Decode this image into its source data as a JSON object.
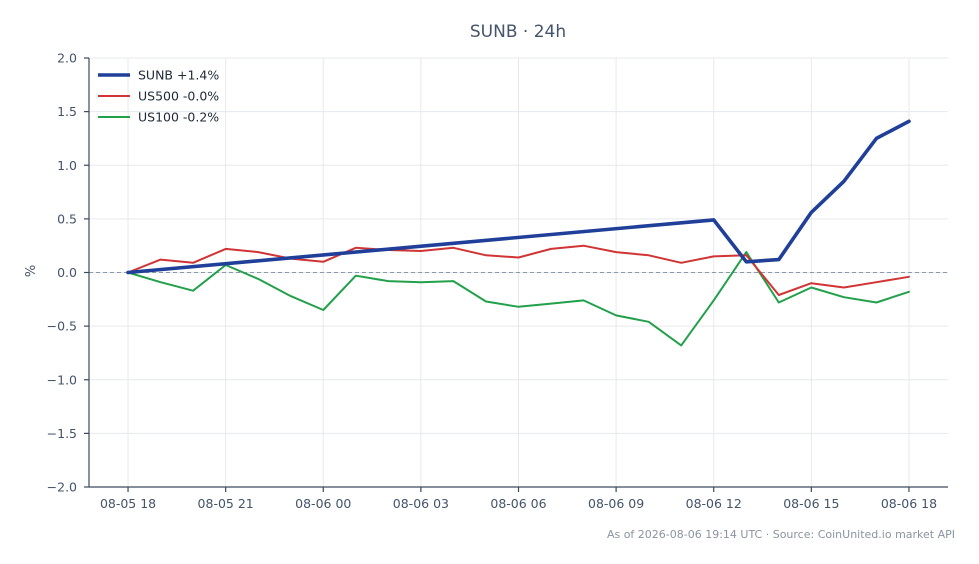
{
  "chart_data": {
    "type": "line",
    "title": "SUNB · 24h",
    "xlabel": "",
    "ylabel": "%",
    "ylim": [
      -2.0,
      2.0
    ],
    "yticks": [
      2.0,
      1.5,
      1.0,
      0.5,
      0.0,
      -0.5,
      -1.0,
      -1.5,
      -2.0
    ],
    "ytick_labels": [
      "2.0",
      "1.5",
      "1.0",
      "0.5",
      "0.0",
      "−0.5",
      "−1.0",
      "−1.5",
      "−2.0"
    ],
    "xticks": [
      "08-05 18",
      "08-05 21",
      "08-06 00",
      "08-06 03",
      "08-06 06",
      "08-06 09",
      "08-06 12",
      "08-06 15",
      "08-06 18"
    ],
    "xlim_hours": [
      -1.2,
      25.2
    ],
    "grid": true,
    "legend_position": "top-left",
    "zero_line": true,
    "series": [
      {
        "name": "SUNB +1.4%",
        "color": "#1f3f99",
        "x": [
          0,
          18,
          19,
          20,
          21,
          22,
          23,
          24
        ],
        "values": [
          0.0,
          0.49,
          0.1,
          0.12,
          0.56,
          0.85,
          1.25,
          1.41
        ]
      },
      {
        "name": "US500 -0.0%",
        "color": "#d03434",
        "x": [
          0,
          1,
          2,
          3,
          4,
          5,
          6,
          7,
          8,
          9,
          10,
          11,
          12,
          13,
          14,
          15,
          16,
          17,
          18,
          19,
          20,
          21,
          22,
          23,
          24
        ],
        "values": [
          0.0,
          0.12,
          0.09,
          0.22,
          0.19,
          0.13,
          0.1,
          0.23,
          0.21,
          0.2,
          0.23,
          0.16,
          0.14,
          0.22,
          0.25,
          0.19,
          0.16,
          0.09,
          0.15,
          0.16,
          -0.21,
          -0.1,
          -0.14,
          -0.09,
          -0.04
        ]
      },
      {
        "name": "US100 -0.2%",
        "color": "#22a04a",
        "x": [
          0,
          1,
          2,
          3,
          4,
          5,
          6,
          7,
          8,
          9,
          10,
          11,
          12,
          13,
          14,
          15,
          16,
          17,
          18,
          19,
          20,
          21,
          22,
          23,
          24
        ],
        "values": [
          0.0,
          -0.09,
          -0.17,
          0.07,
          -0.06,
          -0.22,
          -0.35,
          -0.03,
          -0.08,
          -0.09,
          -0.08,
          -0.27,
          -0.32,
          -0.29,
          -0.26,
          -0.4,
          -0.46,
          -0.68,
          -0.26,
          0.19,
          -0.28,
          -0.14,
          -0.23,
          -0.28,
          -0.18
        ]
      }
    ]
  },
  "footer": {
    "source": "As of 2026-08-06 19:14 UTC · Source: CoinUnited.io market API"
  }
}
